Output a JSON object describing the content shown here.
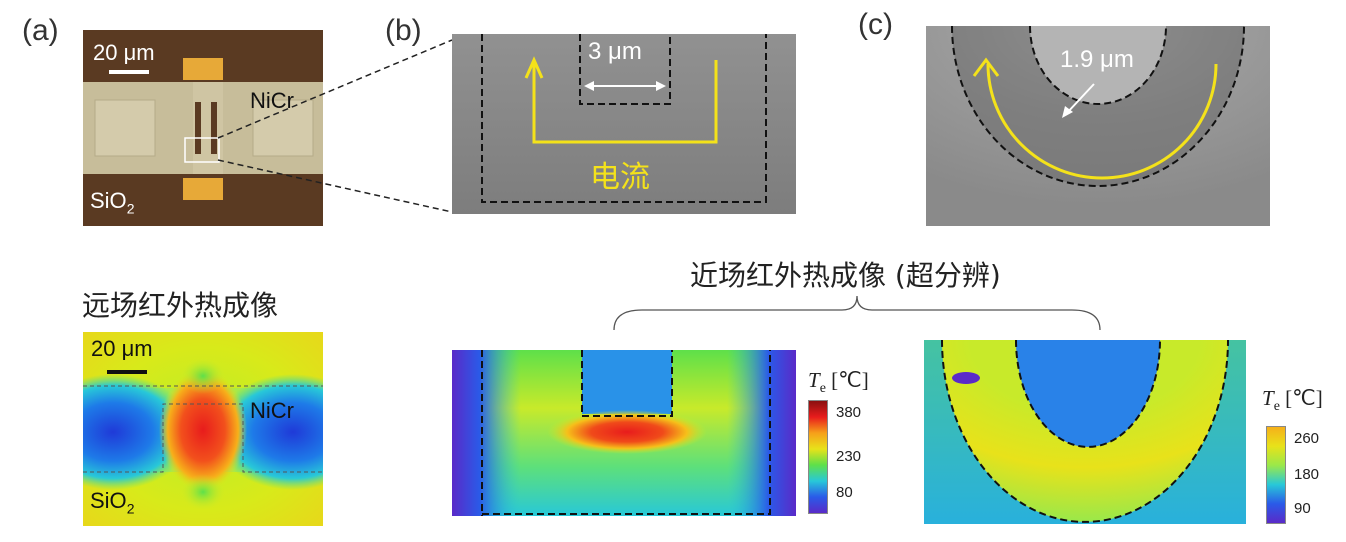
{
  "panels": {
    "a": {
      "label": "(a)",
      "scale_bar": "20 μm",
      "material_top": "NiCr",
      "substrate": "SiO",
      "substrate_sub": "2"
    },
    "b": {
      "label": "(b)",
      "width_label": "3 μm",
      "current_label": "电流"
    },
    "c": {
      "label": "(c)",
      "radius_label": "1.9 μm"
    }
  },
  "far_field": {
    "heading": "远场红外热成像",
    "scale_bar": "20 μm",
    "material": "NiCr",
    "substrate": "SiO",
    "substrate_sub": "2"
  },
  "near_field": {
    "heading": "近场红外热成像 (超分辨)"
  },
  "colorbar_1": {
    "symbol": "T",
    "subscript": "e",
    "unit": "[℃]",
    "ticks": [
      "380",
      "230",
      "80"
    ]
  },
  "colorbar_2": {
    "symbol": "T",
    "subscript": "e",
    "unit": "[℃]",
    "ticks": [
      "260",
      "180",
      "90"
    ]
  },
  "colors": {
    "optical_bg": "#5a3a22",
    "sem_gray": "#8a8a8a",
    "current_arrow": "#f4e21a",
    "hot": "#e0301c",
    "cold": "#2a33c8"
  }
}
